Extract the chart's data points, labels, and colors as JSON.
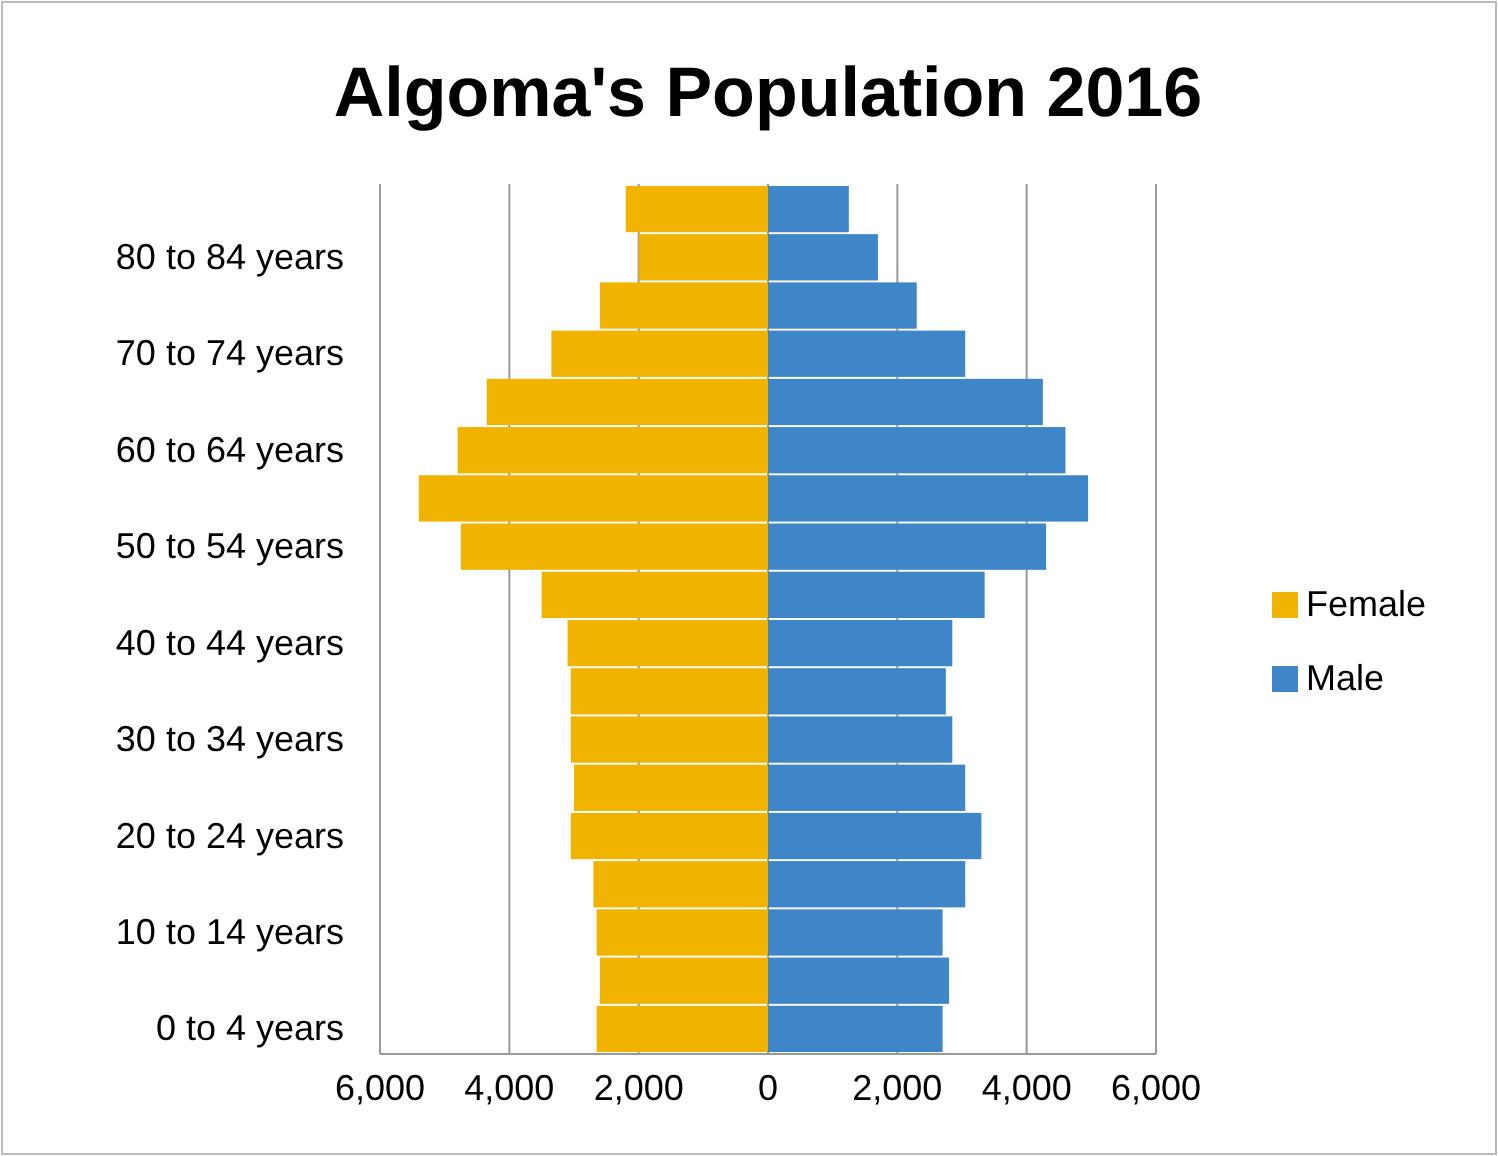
{
  "chart_data": {
    "type": "bar",
    "title": "Algoma's Population 2016",
    "orientation": "horizontal",
    "categories": [
      null,
      "80 to 84 years",
      null,
      "70 to 74 years",
      null,
      "60 to 64 years",
      null,
      "50 to 54 years",
      null,
      "40 to 44 years",
      null,
      "30 to 34 years",
      null,
      "20 to 24 years",
      null,
      "10 to 14 years",
      null,
      "0 to 4 years"
    ],
    "series": [
      {
        "name": "Female",
        "color": "#f0b400",
        "values": [
          -2200,
          -2000,
          -2600,
          -3350,
          -4350,
          -4800,
          -5400,
          -4750,
          -3500,
          -3100,
          -3050,
          -3050,
          -3000,
          -3050,
          -2700,
          -2650,
          -2600,
          -2650
        ]
      },
      {
        "name": "Male",
        "color": "#3f86c8",
        "values": [
          1250,
          1700,
          2300,
          3050,
          4250,
          4600,
          4950,
          4300,
          3350,
          2850,
          2750,
          2850,
          3050,
          3300,
          3050,
          2700,
          2800,
          2700
        ]
      }
    ],
    "xlim": [
      -6000,
      6000
    ],
    "xticks": [
      {
        "value": -6000,
        "label": "6,000"
      },
      {
        "value": -4000,
        "label": "4,000"
      },
      {
        "value": -2000,
        "label": "2,000"
      },
      0,
      {
        "value": 2000,
        "label": "2,000"
      },
      {
        "value": 4000,
        "label": "4,000"
      },
      {
        "value": 6000,
        "label": "6,000"
      }
    ],
    "grid": "x",
    "legend": "right",
    "stacked": true
  }
}
